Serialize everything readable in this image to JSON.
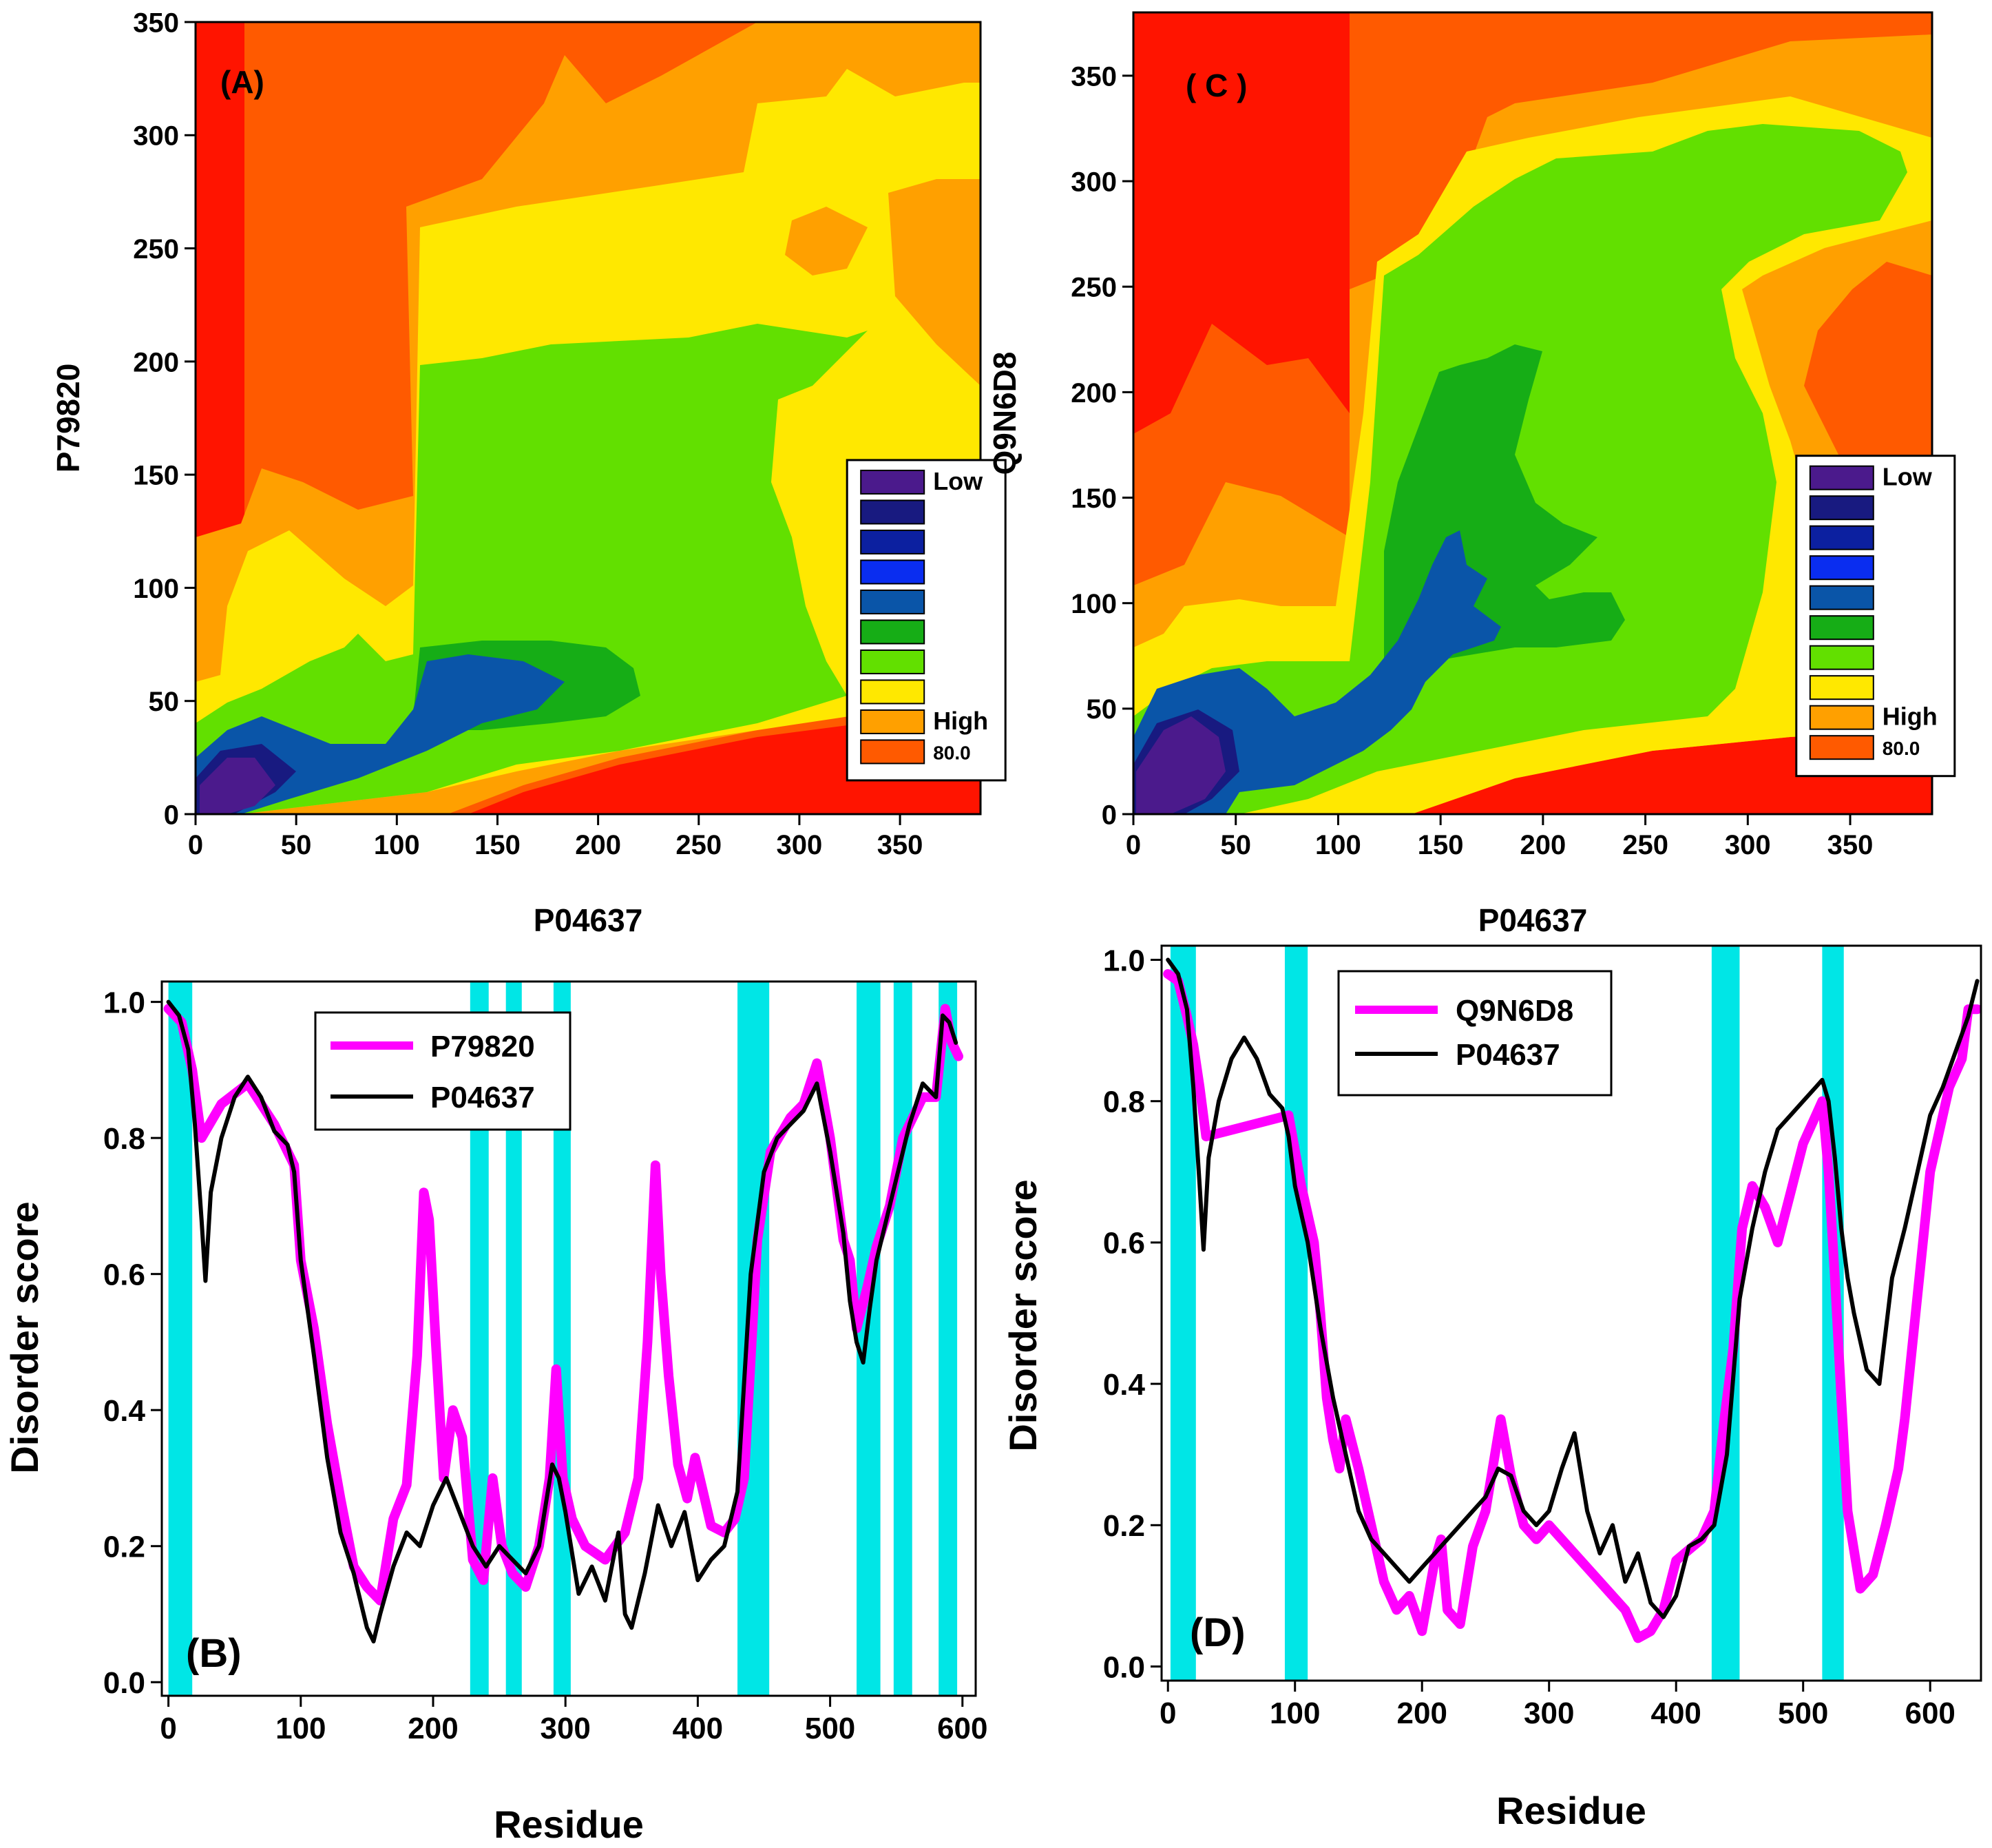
{
  "panels": [
    {
      "type": "contour",
      "panel_label": "(A)",
      "xlabel": "P04637",
      "ylabel": "P79820",
      "xlim": [
        0,
        390
      ],
      "ylim": [
        0,
        350
      ],
      "xticks": [
        0,
        50,
        100,
        150,
        200,
        250,
        300,
        350
      ],
      "yticks": [
        0,
        50,
        100,
        150,
        200,
        250,
        300,
        350
      ],
      "legend": {
        "labels": [
          "Low",
          "",
          "",
          "",
          "",
          "",
          "",
          "",
          "High",
          "80.0"
        ],
        "colors": [
          "#4b1a8c",
          "#181a80",
          "#0c20a0",
          "#0a2df0",
          "#0a55a8",
          "#16ad16",
          "#62e000",
          "#ffe800",
          "#ffa000",
          "#ff5a00"
        ]
      }
    },
    {
      "type": "contour",
      "panel_label": "( C )",
      "xlabel": "P04637",
      "ylabel": "Q9N6D8",
      "xlim": [
        0,
        390
      ],
      "ylim": [
        0,
        380
      ],
      "xticks": [
        0,
        50,
        100,
        150,
        200,
        250,
        300,
        350
      ],
      "yticks": [
        0,
        50,
        100,
        150,
        200,
        250,
        300,
        350
      ],
      "legend": {
        "labels": [
          "Low",
          "",
          "",
          "",
          "",
          "",
          "",
          "",
          "High",
          "80.0"
        ],
        "colors": [
          "#4b1a8c",
          "#181a80",
          "#0c20a0",
          "#0a2df0",
          "#0a55a8",
          "#16ad16",
          "#62e000",
          "#ffe800",
          "#ffa000",
          "#ff5a00"
        ]
      }
    },
    {
      "type": "line",
      "panel_label": "(B)",
      "xlabel": "Residue",
      "ylabel": "Disorder score",
      "xlim": [
        -5,
        610
      ],
      "ylim": [
        -0.02,
        1.03
      ],
      "xticks": [
        0,
        100,
        200,
        300,
        400,
        500,
        600
      ],
      "yticks": [
        "0.0",
        "0.2",
        "0.4",
        "0.6",
        "0.8",
        "1.0"
      ],
      "legend": [
        "P79820",
        "P04637"
      ],
      "highlight_regions": [
        [
          0,
          18
        ],
        [
          228,
          242
        ],
        [
          255,
          267
        ],
        [
          291,
          304
        ],
        [
          430,
          454
        ],
        [
          520,
          538
        ],
        [
          548,
          562
        ],
        [
          582,
          596
        ]
      ],
      "series": [
        {
          "name": "P79820",
          "color": "#ff00ff",
          "x": [
            0,
            10,
            18,
            25,
            40,
            60,
            80,
            95,
            100,
            110,
            120,
            130,
            140,
            150,
            160,
            170,
            180,
            188,
            193,
            197,
            202,
            208,
            215,
            222,
            230,
            238,
            245,
            252,
            260,
            270,
            280,
            288,
            293,
            298,
            305,
            315,
            330,
            345,
            355,
            362,
            368,
            372,
            378,
            385,
            392,
            398,
            410,
            420,
            428,
            435,
            445,
            455,
            470,
            480,
            490,
            500,
            510,
            515,
            520,
            528,
            535,
            545,
            555,
            570,
            580,
            587,
            592,
            597
          ],
          "y": [
            0.99,
            0.97,
            0.9,
            0.8,
            0.85,
            0.88,
            0.82,
            0.76,
            0.62,
            0.52,
            0.38,
            0.27,
            0.17,
            0.14,
            0.12,
            0.24,
            0.29,
            0.48,
            0.72,
            0.68,
            0.5,
            0.3,
            0.4,
            0.36,
            0.18,
            0.15,
            0.3,
            0.2,
            0.16,
            0.14,
            0.2,
            0.3,
            0.46,
            0.3,
            0.24,
            0.2,
            0.18,
            0.22,
            0.3,
            0.5,
            0.76,
            0.6,
            0.45,
            0.32,
            0.27,
            0.33,
            0.23,
            0.22,
            0.24,
            0.3,
            0.65,
            0.78,
            0.83,
            0.85,
            0.91,
            0.8,
            0.65,
            0.62,
            0.52,
            0.58,
            0.64,
            0.7,
            0.8,
            0.86,
            0.86,
            0.99,
            0.94,
            0.92
          ]
        },
        {
          "name": "P04637",
          "color": "#000000",
          "x": [
            0,
            8,
            15,
            20,
            25,
            28,
            32,
            40,
            50,
            60,
            70,
            80,
            90,
            95,
            100,
            110,
            120,
            130,
            140,
            150,
            155,
            160,
            170,
            180,
            190,
            200,
            210,
            220,
            230,
            240,
            250,
            260,
            270,
            280,
            290,
            295,
            300,
            310,
            320,
            330,
            340,
            345,
            350,
            360,
            370,
            380,
            390,
            400,
            410,
            420,
            430,
            440,
            450,
            460,
            470,
            480,
            490,
            500,
            510,
            515,
            520,
            525,
            530,
            535,
            540,
            550,
            560,
            570,
            580,
            585,
            590,
            595
          ],
          "y": [
            1.0,
            0.98,
            0.93,
            0.82,
            0.68,
            0.59,
            0.72,
            0.8,
            0.86,
            0.89,
            0.86,
            0.81,
            0.79,
            0.75,
            0.62,
            0.48,
            0.33,
            0.22,
            0.16,
            0.08,
            0.06,
            0.1,
            0.17,
            0.22,
            0.2,
            0.26,
            0.3,
            0.25,
            0.2,
            0.17,
            0.2,
            0.18,
            0.16,
            0.2,
            0.32,
            0.3,
            0.25,
            0.13,
            0.17,
            0.12,
            0.22,
            0.1,
            0.08,
            0.16,
            0.26,
            0.2,
            0.25,
            0.15,
            0.18,
            0.2,
            0.28,
            0.6,
            0.75,
            0.8,
            0.82,
            0.84,
            0.88,
            0.78,
            0.66,
            0.56,
            0.5,
            0.47,
            0.55,
            0.62,
            0.66,
            0.74,
            0.82,
            0.88,
            0.86,
            0.98,
            0.97,
            0.94
          ]
        }
      ]
    },
    {
      "type": "line",
      "panel_label": "(D)",
      "xlabel": "Residue",
      "ylabel": "Disorder score",
      "xlim": [
        -5,
        640
      ],
      "ylim": [
        -0.02,
        1.02
      ],
      "xticks": [
        0,
        100,
        200,
        300,
        400,
        500,
        600
      ],
      "yticks": [
        "0.0",
        "0.2",
        "0.4",
        "0.6",
        "0.8",
        "1.0"
      ],
      "legend": [
        "Q9N6D8",
        "P04637"
      ],
      "highlight_regions": [
        [
          2,
          22
        ],
        [
          92,
          110
        ],
        [
          428,
          450
        ],
        [
          515,
          532
        ]
      ],
      "series": [
        {
          "name": "Q9N6D8",
          "color": "#ff00ff",
          "x": [
            0,
            8,
            15,
            20,
            25,
            30,
            95,
            105,
            115,
            120,
            125,
            130,
            135,
            140,
            150,
            160,
            170,
            180,
            190,
            200,
            210,
            215,
            220,
            230,
            240,
            250,
            262,
            270,
            280,
            290,
            300,
            360,
            370,
            380,
            390,
            400,
            420,
            430,
            438,
            445,
            452,
            460,
            470,
            480,
            490,
            500,
            510,
            515,
            520,
            525,
            530,
            535,
            545,
            555,
            565,
            575,
            580,
            600,
            615,
            625,
            630,
            637
          ],
          "y": [
            0.98,
            0.97,
            0.92,
            0.88,
            0.82,
            0.75,
            0.78,
            0.68,
            0.6,
            0.5,
            0.38,
            0.32,
            0.28,
            0.35,
            0.28,
            0.2,
            0.12,
            0.08,
            0.1,
            0.05,
            0.15,
            0.18,
            0.08,
            0.06,
            0.17,
            0.22,
            0.35,
            0.27,
            0.2,
            0.18,
            0.2,
            0.08,
            0.04,
            0.05,
            0.08,
            0.15,
            0.18,
            0.22,
            0.35,
            0.45,
            0.62,
            0.68,
            0.65,
            0.6,
            0.67,
            0.74,
            0.78,
            0.8,
            0.7,
            0.55,
            0.38,
            0.22,
            0.11,
            0.13,
            0.2,
            0.28,
            0.35,
            0.7,
            0.82,
            0.86,
            0.93,
            0.93
          ]
        },
        {
          "name": "P04637",
          "color": "#000000",
          "x": [
            0,
            8,
            15,
            20,
            25,
            28,
            32,
            40,
            50,
            60,
            70,
            80,
            90,
            95,
            100,
            110,
            120,
            130,
            140,
            150,
            160,
            170,
            180,
            190,
            200,
            210,
            220,
            230,
            240,
            250,
            260,
            270,
            280,
            290,
            300,
            310,
            320,
            330,
            340,
            350,
            360,
            370,
            380,
            390,
            400,
            410,
            420,
            430,
            440,
            450,
            460,
            470,
            480,
            490,
            500,
            510,
            515,
            520,
            525,
            530,
            535,
            540,
            550,
            560,
            570,
            580,
            590,
            600,
            610,
            620,
            630,
            637
          ],
          "y": [
            1.0,
            0.98,
            0.93,
            0.82,
            0.68,
            0.59,
            0.72,
            0.8,
            0.86,
            0.89,
            0.86,
            0.81,
            0.79,
            0.75,
            0.68,
            0.6,
            0.48,
            0.38,
            0.3,
            0.22,
            0.18,
            0.16,
            0.14,
            0.12,
            0.14,
            0.16,
            0.18,
            0.2,
            0.22,
            0.24,
            0.28,
            0.27,
            0.22,
            0.2,
            0.22,
            0.28,
            0.33,
            0.22,
            0.16,
            0.2,
            0.12,
            0.16,
            0.09,
            0.07,
            0.1,
            0.17,
            0.18,
            0.2,
            0.3,
            0.52,
            0.62,
            0.7,
            0.76,
            0.78,
            0.8,
            0.82,
            0.83,
            0.8,
            0.72,
            0.62,
            0.55,
            0.5,
            0.42,
            0.4,
            0.55,
            0.62,
            0.7,
            0.78,
            0.82,
            0.87,
            0.92,
            0.97
          ]
        }
      ]
    }
  ]
}
